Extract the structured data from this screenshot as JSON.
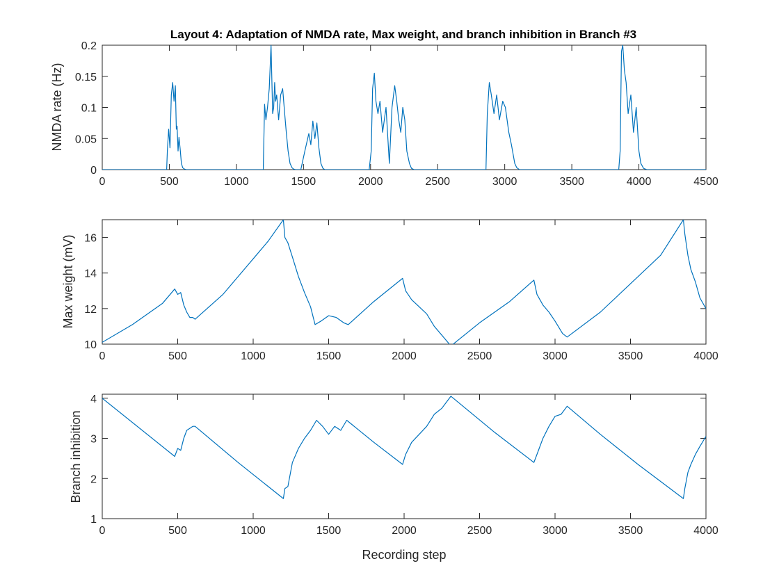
{
  "figure": {
    "title": "Layout 4: Adaptation of NMDA rate, Max weight, and branch inhibition in Branch #3",
    "line_color": "#0072BD",
    "axis_color": "#262626",
    "background": "#ffffff"
  },
  "chart_data": [
    {
      "type": "line",
      "title": "Layout 4: Adaptation of NMDA rate, Max weight, and branch inhibition in Branch #3",
      "xlabel": "",
      "ylabel": "NMDA rate (Hz)",
      "xlim": [
        0,
        4500
      ],
      "ylim": [
        0,
        0.2
      ],
      "xticks": [
        "0",
        "500",
        "1000",
        "1500",
        "2000",
        "2500",
        "3000",
        "3500",
        "4000",
        "4500"
      ],
      "yticks": [
        "0",
        "0.05",
        "0.1",
        "0.15",
        "0.2"
      ],
      "grid": false,
      "series": [
        {
          "x": [
            0,
            480,
            485,
            495,
            505,
            515,
            525,
            535,
            545,
            552,
            558,
            565,
            572,
            580,
            590,
            600,
            612,
            625,
            645,
            670,
            700,
            1200,
            1210,
            1220,
            1232,
            1245,
            1258,
            1270,
            1278,
            1285,
            1292,
            1300,
            1315,
            1330,
            1345,
            1360,
            1372,
            1385,
            1400,
            1415,
            1425,
            1440,
            1460,
            1480,
            1510,
            1540,
            1555,
            1570,
            1585,
            1600,
            1615,
            1630,
            1645,
            1660,
            1680,
            1700,
            1720,
            1990,
            2005,
            2015,
            2028,
            2040,
            2055,
            2070,
            2090,
            2115,
            2140,
            2160,
            2180,
            2195,
            2210,
            2225,
            2240,
            2255,
            2270,
            2290,
            2305,
            2325,
            2345,
            2380,
            2420,
            2860,
            2870,
            2885,
            2900,
            2920,
            2940,
            2960,
            2985,
            3005,
            3030,
            3050,
            3075,
            3090,
            3110,
            3140,
            3170,
            3850,
            3860,
            3870,
            3880,
            3892,
            3905,
            3920,
            3940,
            3960,
            3980,
            4000,
            4015,
            4035,
            4060,
            4090,
            4500
          ],
          "y": [
            0,
            0,
            0.03,
            0.065,
            0.035,
            0.12,
            0.14,
            0.11,
            0.135,
            0.065,
            0.07,
            0.03,
            0.052,
            0.035,
            0.01,
            0.003,
            0.001,
            0,
            0,
            0,
            0,
            0,
            0.105,
            0.08,
            0.1,
            0.13,
            0.2,
            0.09,
            0.1,
            0.14,
            0.11,
            0.12,
            0.08,
            0.12,
            0.13,
            0.09,
            0.06,
            0.03,
            0.01,
            0.003,
            0.001,
            0,
            0,
            0,
            0.03,
            0.058,
            0.04,
            0.078,
            0.05,
            0.075,
            0.035,
            0.01,
            0.002,
            0,
            0,
            0,
            0,
            0,
            0.03,
            0.13,
            0.155,
            0.11,
            0.09,
            0.11,
            0.06,
            0.1,
            0.01,
            0.1,
            0.135,
            0.11,
            0.08,
            0.06,
            0.1,
            0.08,
            0.03,
            0.01,
            0.002,
            0,
            0,
            0,
            0,
            0,
            0.09,
            0.14,
            0.12,
            0.09,
            0.12,
            0.08,
            0.11,
            0.1,
            0.06,
            0.04,
            0.01,
            0.003,
            0,
            0,
            0,
            0,
            0.03,
            0.19,
            0.2,
            0.16,
            0.14,
            0.09,
            0.12,
            0.06,
            0.1,
            0.03,
            0.01,
            0.002,
            0,
            0,
            0
          ]
        }
      ]
    },
    {
      "type": "line",
      "title": "",
      "xlabel": "",
      "ylabel": "Max weight (mV)",
      "xlim": [
        0,
        4000
      ],
      "ylim": [
        10,
        17
      ],
      "xticks": [
        "0",
        "500",
        "1000",
        "1500",
        "2000",
        "2500",
        "3000",
        "3500",
        "4000"
      ],
      "yticks": [
        "10",
        "12",
        "14",
        "16"
      ],
      "grid": false,
      "series": [
        {
          "x": [
            0,
            200,
            400,
            480,
            500,
            520,
            540,
            560,
            580,
            600,
            615,
            800,
            1000,
            1100,
            1200,
            1210,
            1230,
            1260,
            1300,
            1340,
            1380,
            1410,
            1450,
            1500,
            1550,
            1600,
            1630,
            1800,
            1990,
            2010,
            2050,
            2100,
            2150,
            2200,
            2250,
            2310,
            2500,
            2700,
            2860,
            2880,
            2920,
            2960,
            3000,
            3050,
            3080,
            3300,
            3500,
            3700,
            3850,
            3860,
            3880,
            3900,
            3930,
            3960,
            4000
          ],
          "y": [
            10.1,
            11.1,
            12.3,
            13.1,
            12.8,
            12.9,
            12.2,
            11.8,
            11.5,
            11.5,
            11.4,
            12.8,
            14.8,
            15.8,
            17.0,
            16.0,
            15.7,
            14.9,
            13.8,
            12.9,
            12.1,
            11.1,
            11.3,
            11.6,
            11.5,
            11.2,
            11.1,
            12.4,
            13.7,
            13.0,
            12.5,
            12.1,
            11.7,
            11.0,
            10.5,
            9.9,
            11.2,
            12.4,
            13.6,
            12.8,
            12.2,
            11.8,
            11.3,
            10.6,
            10.4,
            11.8,
            13.4,
            15.0,
            17.0,
            16.2,
            15.0,
            14.2,
            13.5,
            12.6,
            12.0
          ]
        }
      ]
    },
    {
      "type": "line",
      "title": "",
      "xlabel": "Recording step",
      "ylabel": "Branch inhibition",
      "xlim": [
        0,
        4000
      ],
      "ylim": [
        1,
        4.1
      ],
      "xticks": [
        "0",
        "500",
        "1000",
        "1500",
        "2000",
        "2500",
        "3000",
        "3500",
        "4000"
      ],
      "yticks": [
        "1",
        "2",
        "3",
        "4"
      ],
      "grid": false,
      "series": [
        {
          "x": [
            0,
            480,
            500,
            520,
            540,
            560,
            580,
            600,
            615,
            900,
            1200,
            1210,
            1230,
            1260,
            1300,
            1340,
            1380,
            1420,
            1460,
            1500,
            1540,
            1580,
            1620,
            1800,
            1990,
            2010,
            2050,
            2100,
            2150,
            2200,
            2250,
            2280,
            2310,
            2600,
            2860,
            2880,
            2920,
            2960,
            3000,
            3040,
            3080,
            3300,
            3550,
            3850,
            3860,
            3880,
            3900,
            3930,
            3960,
            4000
          ],
          "y": [
            4.0,
            2.55,
            2.75,
            2.7,
            3.0,
            3.2,
            3.25,
            3.3,
            3.3,
            2.4,
            1.5,
            1.75,
            1.8,
            2.4,
            2.75,
            3.0,
            3.2,
            3.45,
            3.3,
            3.1,
            3.3,
            3.2,
            3.45,
            2.9,
            2.35,
            2.6,
            2.9,
            3.1,
            3.3,
            3.6,
            3.75,
            3.9,
            4.05,
            3.15,
            2.4,
            2.6,
            3.0,
            3.3,
            3.55,
            3.6,
            3.8,
            3.1,
            2.35,
            1.5,
            1.75,
            2.15,
            2.35,
            2.6,
            2.8,
            3.05
          ]
        }
      ]
    }
  ]
}
